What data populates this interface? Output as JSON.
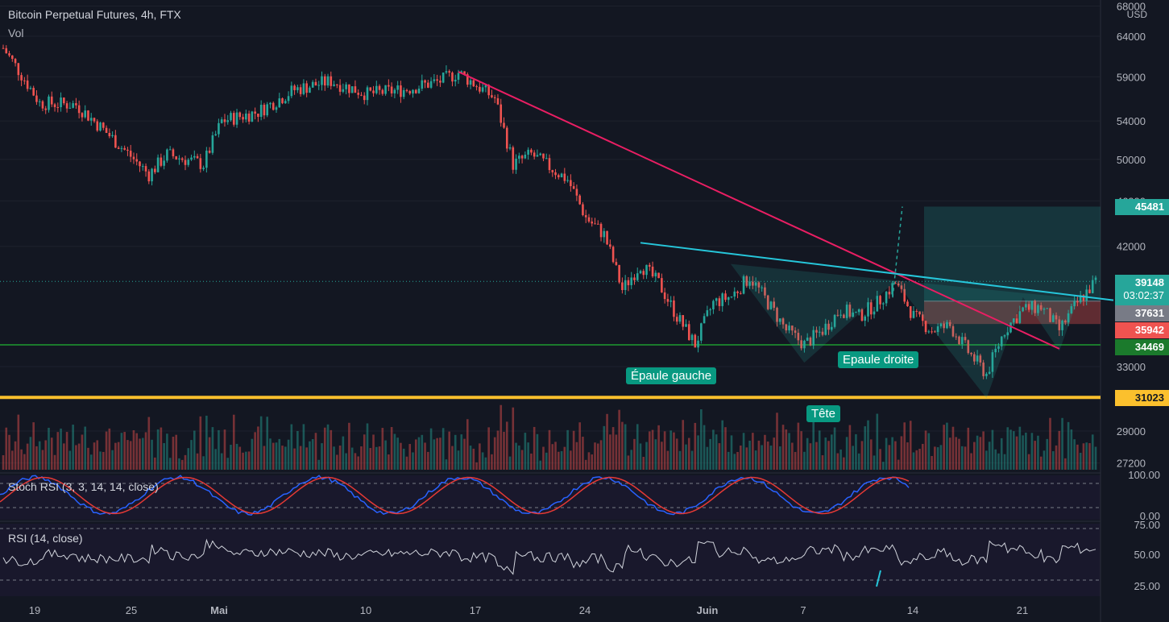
{
  "header": {
    "symbol": "Bitcoin Perpetual Futures, 4h, FTX",
    "volume_label": "Vol"
  },
  "colors": {
    "background": "#131722",
    "up": "#26a69a",
    "down": "#ef5350",
    "trendline": "#e91e63",
    "neckline": "#26c6da",
    "support_green": "#1b7a2c",
    "support_yellow": "#fbc02d",
    "stoch_k": "#2962ff",
    "stoch_d": "#e53935",
    "indicator_band": "#2a1a4a"
  },
  "chart_data": {
    "type": "candlestick",
    "title": "Bitcoin Perpetual Futures, 4h, FTX",
    "currency": "USD",
    "scale": "log",
    "ylim": [
      27200,
      68000
    ],
    "x_ticks": [
      "19",
      "25",
      "Mai",
      "10",
      "17",
      "24",
      "Juin",
      "7",
      "14",
      "21"
    ],
    "y_ticks": [
      68000,
      64000,
      59000,
      54000,
      50000,
      46000,
      42000,
      33000,
      29000,
      27200
    ],
    "anchor_closes": [
      {
        "date": "15 avr.",
        "close": 62500
      },
      {
        "date": "17 avr.",
        "close": 56000
      },
      {
        "date": "19 avr.",
        "close": 55800
      },
      {
        "date": "23 avr.",
        "close": 48500
      },
      {
        "date": "24 avr.",
        "close": 50500
      },
      {
        "date": "26 avr.",
        "close": 49500
      },
      {
        "date": "27 avr.",
        "close": 54000
      },
      {
        "date": "29 avr.",
        "close": 55000
      },
      {
        "date": "1 mai",
        "close": 57500
      },
      {
        "date": "3 mai",
        "close": 58500
      },
      {
        "date": "5 mai",
        "close": 57000
      },
      {
        "date": "7 mai",
        "close": 57500
      },
      {
        "date": "9 mai",
        "close": 58500
      },
      {
        "date": "10 mai",
        "close": 59500
      },
      {
        "date": "12 mai",
        "close": 56500
      },
      {
        "date": "13 mai",
        "close": 49500
      },
      {
        "date": "14 mai",
        "close": 50500
      },
      {
        "date": "16 mai",
        "close": 48000
      },
      {
        "date": "17 mai",
        "close": 44500
      },
      {
        "date": "18 mai",
        "close": 43000
      },
      {
        "date": "19 mai",
        "close": 38500
      },
      {
        "date": "20 mai",
        "close": 40500
      },
      {
        "date": "21 mai",
        "close": 39000
      },
      {
        "date": "22 mai",
        "close": 36500
      },
      {
        "date": "23 mai",
        "close": 34500
      },
      {
        "date": "24 mai",
        "close": 37500
      },
      {
        "date": "25 mai",
        "close": 38000
      },
      {
        "date": "26 mai",
        "close": 39500
      },
      {
        "date": "27 mai",
        "close": 37500
      },
      {
        "date": "28 mai",
        "close": 35500
      },
      {
        "date": "29 mai",
        "close": 34500
      },
      {
        "date": "30 mai",
        "close": 35500
      },
      {
        "date": "31 mai",
        "close": 37000
      },
      {
        "date": "1 juin",
        "close": 36500
      },
      {
        "date": "2 juin",
        "close": 37500
      },
      {
        "date": "3 juin",
        "close": 39000
      },
      {
        "date": "4 juin",
        "close": 36500
      },
      {
        "date": "5 juin",
        "close": 35500
      },
      {
        "date": "6 juin",
        "close": 35800
      },
      {
        "date": "7 juin",
        "close": 34000
      },
      {
        "date": "8 juin",
        "close": 32500
      },
      {
        "date": "9 juin",
        "close": 35500
      },
      {
        "date": "10 juin",
        "close": 37000
      },
      {
        "date": "11 juin",
        "close": 37200
      },
      {
        "date": "12 juin",
        "close": 35500
      },
      {
        "date": "13 juin",
        "close": 37500
      },
      {
        "date": "14 juin",
        "close": 39148
      }
    ],
    "price_labels": [
      {
        "value": "45481",
        "color": "#26a69a"
      },
      {
        "value": "39148",
        "extra": "03:02:37",
        "color": "#26a69a"
      },
      {
        "value": "37631",
        "color": "#787b86"
      },
      {
        "value": "35942",
        "color": "#ef5350"
      },
      {
        "value": "34469",
        "color": "#1b7a2c"
      },
      {
        "value": "31023",
        "color": "#fbc02d"
      }
    ],
    "horizontal_lines": [
      {
        "price": 34469,
        "color": "#1b7a2c"
      },
      {
        "price": 31023,
        "color": "#fbc02d"
      }
    ],
    "trendline": {
      "from": {
        "date": "10 mai",
        "price": 59600
      },
      "to": {
        "date": "12 juin",
        "price": 34200
      }
    },
    "neckline": {
      "from": {
        "date": "20 mai",
        "price": 42300
      },
      "to": {
        "date": "14 juin",
        "price": 37700
      }
    },
    "pattern_points": [
      {
        "date": "25 mai",
        "price": 40500
      },
      {
        "date": "29 mai",
        "price": 33300
      },
      {
        "date": "3 juin",
        "price": 39200
      },
      {
        "date": "8 juin",
        "price": 31023
      },
      {
        "date": "10 juin",
        "price": 38000
      },
      {
        "date": "12 juin",
        "price": 34100
      },
      {
        "date": "13 juin",
        "price": 37800
      }
    ],
    "position": {
      "entry": 37631,
      "target": 45481,
      "stop": 35942
    },
    "annotations": [
      "Épaule gauche",
      "Tête",
      "Epaule droite"
    ],
    "stoch_rsi": {
      "label": "Stoch RSI (3, 3, 14, 14, close)",
      "levels": [
        "100.00",
        "0.00"
      ]
    },
    "rsi": {
      "label": "RSI (14, close)",
      "levels": [
        "75.00",
        "50.00",
        "25.00"
      ]
    }
  }
}
